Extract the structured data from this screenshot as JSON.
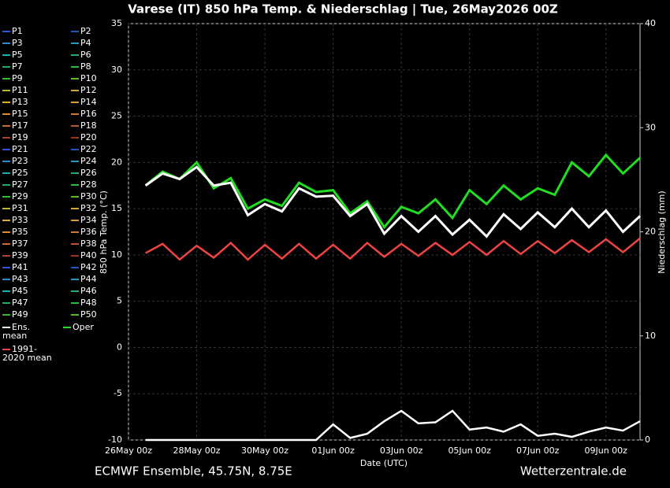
{
  "chart_data": {
    "type": "line",
    "title": "Varese  (IT)  850 hPa Temp. & Niederschlag | Tue, 26May2026 00Z",
    "y_label": "850 hPa Temp. (°C)",
    "y2_label": "Niederschlag (mm)",
    "x_label": "Date (UTC)",
    "footer_left": "ECMWF Ensemble, 45.75N, 8.75E",
    "footer_right": "Wetterzentrale.de",
    "xlim": [
      0,
      360
    ],
    "xticks": [
      {
        "value": 0,
        "label": "26May 00z"
      },
      {
        "value": 48,
        "label": "28May 00z"
      },
      {
        "value": 96,
        "label": "30May 00z"
      },
      {
        "value": 144,
        "label": "01Jun 00z"
      },
      {
        "value": 192,
        "label": "03Jun 00z"
      },
      {
        "value": 240,
        "label": "05Jun 00z"
      },
      {
        "value": 288,
        "label": "07Jun 00z"
      },
      {
        "value": 336,
        "label": "09Jun 00z"
      }
    ],
    "ylim": [
      -10,
      35
    ],
    "yticks": [
      -10,
      -5,
      0,
      5,
      10,
      15,
      20,
      25,
      30,
      35
    ],
    "y2lim": [
      0,
      40
    ],
    "y2ticks": [
      0,
      10,
      20,
      30,
      40
    ],
    "grid": true,
    "x": [
      12,
      24,
      36,
      48,
      60,
      72,
      84,
      96,
      108,
      120,
      132,
      144,
      156,
      168,
      180,
      192,
      204,
      216,
      228,
      240,
      252,
      264,
      276,
      288,
      300,
      312,
      324,
      336,
      348,
      360
    ],
    "series": [
      {
        "name": "Ens. mean",
        "color": "#ffffff",
        "values": [
          17.5,
          18.8,
          18.2,
          19.5,
          17.5,
          17.8,
          14.3,
          15.5,
          14.7,
          17.2,
          16.3,
          16.4,
          14.2,
          15.5,
          12.3,
          14.2,
          12.5,
          14.2,
          12.2,
          13.8,
          12.0,
          14.4,
          12.8,
          14.6,
          13.0,
          15.0,
          13.0,
          14.8,
          12.5,
          14.2
        ]
      },
      {
        "name": "Oper",
        "color": "#22dd22",
        "values": [
          17.5,
          19,
          18.2,
          20,
          17.2,
          18.3,
          15,
          16,
          15.3,
          17.8,
          16.8,
          17,
          14.5,
          15.8,
          13,
          15.2,
          14.5,
          16,
          14,
          17,
          15.5,
          17.5,
          16,
          17.2,
          16.5,
          20,
          18.5,
          20.8,
          18.8,
          20.5
        ]
      },
      {
        "name": "1991-2020 mean",
        "color": "#ee4444",
        "values": [
          10.2,
          11.2,
          9.5,
          11,
          9.7,
          11.3,
          9.5,
          11.1,
          9.6,
          11.2,
          9.6,
          11.1,
          9.6,
          11.3,
          9.8,
          11.2,
          9.9,
          11.3,
          10,
          11.4,
          10,
          11.5,
          10.1,
          11.5,
          10.2,
          11.6,
          10.3,
          11.7,
          10.3,
          11.8
        ]
      }
    ],
    "precip_mean": {
      "color": "#ffffff",
      "axis": "y2",
      "values": [
        0,
        0,
        0,
        0,
        0,
        0,
        0,
        0,
        0,
        0,
        0,
        1.5,
        0.2,
        0.6,
        1.8,
        2.8,
        1.6,
        1.7,
        2.8,
        1.0,
        1.2,
        0.8,
        1.5,
        0.4,
        0.6,
        0.3,
        0.8,
        1.2,
        0.9,
        1.8
      ]
    },
    "members": [
      {
        "name": "P1",
        "color": "#3355dd"
      },
      {
        "name": "P2",
        "color": "#2255bb"
      },
      {
        "name": "P3",
        "color": "#3388cc"
      },
      {
        "name": "P4",
        "color": "#2299bb"
      },
      {
        "name": "P5",
        "color": "#22aaaa"
      },
      {
        "name": "P6",
        "color": "#22aa88"
      },
      {
        "name": "P7",
        "color": "#22aa66"
      },
      {
        "name": "P8",
        "color": "#22bb44"
      },
      {
        "name": "P9",
        "color": "#33bb33"
      },
      {
        "name": "P10",
        "color": "#55bb22"
      },
      {
        "name": "P11",
        "color": "#bbbb33"
      },
      {
        "name": "P12",
        "color": "#ccaa33"
      },
      {
        "name": "P13",
        "color": "#ddaa33"
      },
      {
        "name": "P14",
        "color": "#dd9933"
      },
      {
        "name": "P15",
        "color": "#dd8833"
      },
      {
        "name": "P16",
        "color": "#cc7733"
      },
      {
        "name": "P17",
        "color": "#cc6633"
      },
      {
        "name": "P18",
        "color": "#bb5533"
      },
      {
        "name": "P19",
        "color": "#aa4433"
      },
      {
        "name": "P20",
        "color": "#993322"
      },
      {
        "name": "P21",
        "color": "#3355dd"
      },
      {
        "name": "P22",
        "color": "#2255bb"
      },
      {
        "name": "P23",
        "color": "#3388cc"
      },
      {
        "name": "P24",
        "color": "#2299bb"
      },
      {
        "name": "P25",
        "color": "#22aaaa"
      },
      {
        "name": "P26",
        "color": "#22aa88"
      },
      {
        "name": "P27",
        "color": "#22aa66"
      },
      {
        "name": "P28",
        "color": "#22bb44"
      },
      {
        "name": "P29",
        "color": "#33bb33"
      },
      {
        "name": "P30",
        "color": "#55bb22"
      },
      {
        "name": "P31",
        "color": "#bbbb33"
      },
      {
        "name": "P32",
        "color": "#ccaa33"
      },
      {
        "name": "P33",
        "color": "#ddaa33"
      },
      {
        "name": "P34",
        "color": "#dd9933"
      },
      {
        "name": "P35",
        "color": "#dd8833"
      },
      {
        "name": "P36",
        "color": "#cc7733"
      },
      {
        "name": "P37",
        "color": "#cc6633"
      },
      {
        "name": "P38",
        "color": "#bb5533"
      },
      {
        "name": "P39",
        "color": "#aa4433"
      },
      {
        "name": "P40",
        "color": "#993322"
      },
      {
        "name": "P41",
        "color": "#3355dd"
      },
      {
        "name": "P42",
        "color": "#2255bb"
      },
      {
        "name": "P43",
        "color": "#3388cc"
      },
      {
        "name": "P44",
        "color": "#2299bb"
      },
      {
        "name": "P45",
        "color": "#22aaaa"
      },
      {
        "name": "P46",
        "color": "#22aa88"
      },
      {
        "name": "P47",
        "color": "#22aa66"
      },
      {
        "name": "P48",
        "color": "#22bb44"
      },
      {
        "name": "P49",
        "color": "#33bb33"
      },
      {
        "name": "P50",
        "color": "#55bb22"
      }
    ]
  }
}
